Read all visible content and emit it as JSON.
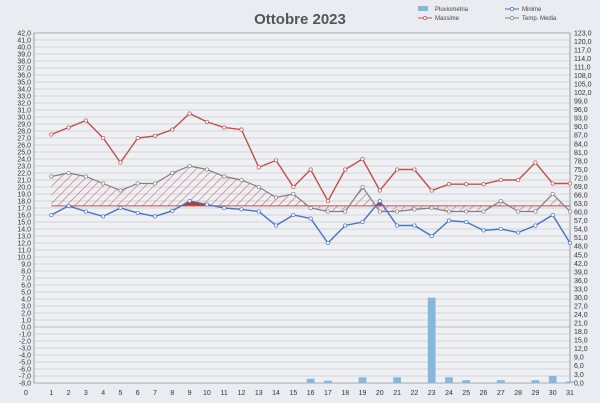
{
  "chart_data": {
    "type": "line",
    "title": "Ottobre 2023",
    "legend": {
      "placement": "top-right",
      "items": [
        {
          "label": "Pluviometria",
          "color": "#86b8dc",
          "kind": "bar"
        },
        {
          "label": "Minime",
          "color": "#4472c4",
          "kind": "line"
        },
        {
          "label": "Massime",
          "color": "#c0504d",
          "kind": "line"
        },
        {
          "label": "Temp. Media",
          "color": "#7f7f7f",
          "kind": "line"
        }
      ]
    },
    "x": {
      "range": [
        0,
        31
      ],
      "tick_labels": [
        "0",
        "1",
        "2",
        "3",
        "4",
        "5",
        "6",
        "7",
        "8",
        "9",
        "10",
        "11",
        "12",
        "13",
        "14",
        "15",
        "16",
        "17",
        "18",
        "19",
        "20",
        "21",
        "22",
        "23",
        "24",
        "25",
        "26",
        "27",
        "28",
        "29",
        "30",
        "31"
      ]
    },
    "y_left": {
      "range": [
        -8,
        42
      ],
      "tick_labels": [
        "42,0",
        "41,0",
        "40,0",
        "39,0",
        "38,0",
        "37,0",
        "36,0",
        "35,0",
        "34,0",
        "33,0",
        "32,0",
        "31,0",
        "30,0",
        "29,0",
        "28,0",
        "27,0",
        "26,0",
        "25,0",
        "24,0",
        "23,0",
        "22,0",
        "21,0",
        "20,0",
        "19,0",
        "18,0",
        "17,0",
        "16,0",
        "15,0",
        "14,0",
        "13,0",
        "12,0",
        "11,0",
        "10,0",
        "9,0",
        "8,0",
        "7,0",
        "6,0",
        "5,0",
        "4,0",
        "3,0",
        "2,0",
        "1,0",
        "0,0",
        "-1,0",
        "-2,0",
        "-3,0",
        "-4,0",
        "-5,0",
        "-6,0",
        "-7,0",
        "-8,0"
      ]
    },
    "y_right": {
      "range": [
        0,
        123
      ],
      "tick_labels": [
        "123,0",
        "120,0",
        "117,0",
        "114,0",
        "111,0",
        "108,0",
        "105,0",
        "102,0",
        "99,0",
        "96,0",
        "93,0",
        "90,0",
        "87,0",
        "84,0",
        "81,0",
        "78,0",
        "75,0",
        "72,0",
        "69,0",
        "66,0",
        "63,0",
        "60,0",
        "57,0",
        "54,0",
        "51,0",
        "48,0",
        "45,0",
        "42,0",
        "39,0",
        "36,0",
        "33,0",
        "30,0",
        "27,0",
        "24,0",
        "21,0",
        "18,0",
        "15,0",
        "12,0",
        "9,0",
        "6,0",
        "3,0",
        "0,0"
      ]
    },
    "grid": true,
    "reference_line": {
      "y": 17.3,
      "color": "#c0504d"
    },
    "series": [
      {
        "name": "Massime",
        "color": "#c0504d",
        "x": [
          1,
          2,
          3,
          4,
          5,
          6,
          7,
          8,
          9,
          10,
          11,
          12,
          13,
          14,
          15,
          16,
          17,
          18,
          19,
          20,
          21,
          22,
          23,
          24,
          25,
          26,
          27,
          28,
          29,
          30,
          31
        ],
        "values": [
          27.5,
          28.5,
          29.5,
          27.0,
          23.5,
          27.0,
          27.3,
          28.2,
          30.5,
          29.3,
          28.5,
          28.2,
          22.8,
          23.8,
          20.0,
          22.5,
          18.0,
          22.5,
          24.0,
          19.5,
          22.5,
          22.5,
          19.5,
          20.4,
          20.4,
          20.4,
          21.0,
          21.0,
          23.5,
          20.5,
          20.5
        ]
      },
      {
        "name": "Temp. Media",
        "color": "#7f7f7f",
        "x": [
          1,
          2,
          3,
          4,
          5,
          6,
          7,
          8,
          9,
          10,
          11,
          12,
          13,
          14,
          15,
          16,
          17,
          18,
          19,
          20,
          21,
          22,
          23,
          24,
          25,
          26,
          27,
          28,
          29,
          30,
          31
        ],
        "values": [
          21.5,
          22.0,
          21.5,
          20.5,
          19.5,
          20.5,
          20.5,
          22.0,
          23.0,
          22.5,
          21.5,
          21.0,
          20.0,
          18.5,
          19.0,
          17.0,
          16.5,
          16.5,
          20.0,
          16.5,
          16.5,
          16.8,
          17.0,
          16.5,
          16.5,
          16.5,
          18.0,
          16.5,
          16.5,
          19.0,
          16.5
        ]
      },
      {
        "name": "Minime",
        "color": "#4472c4",
        "x": [
          1,
          2,
          3,
          4,
          5,
          6,
          7,
          8,
          9,
          10,
          11,
          12,
          13,
          14,
          15,
          16,
          17,
          18,
          19,
          20,
          21,
          22,
          23,
          24,
          25,
          26,
          27,
          28,
          29,
          30,
          31
        ],
        "values": [
          16.0,
          17.3,
          16.5,
          15.8,
          17.0,
          16.3,
          15.8,
          16.6,
          18.0,
          17.5,
          17.0,
          16.8,
          16.5,
          14.5,
          16.0,
          15.5,
          12.0,
          14.5,
          15.0,
          18.0,
          14.5,
          14.5,
          13.0,
          15.2,
          15.0,
          13.8,
          14.0,
          13.5,
          14.5,
          16.0,
          12.0
        ]
      },
      {
        "name": "Pluviometria",
        "color": "#86b8dc",
        "axis": "right",
        "type": "bar",
        "x": [
          16,
          17,
          18,
          19,
          20,
          21,
          22,
          23,
          24,
          25,
          26,
          27,
          28,
          29,
          30,
          31
        ],
        "values": [
          1.5,
          0.8,
          0,
          2.0,
          0,
          2.0,
          0,
          30.0,
          2.0,
          1.0,
          0,
          1.0,
          0,
          1.0,
          2.5,
          0.5
        ]
      }
    ]
  }
}
